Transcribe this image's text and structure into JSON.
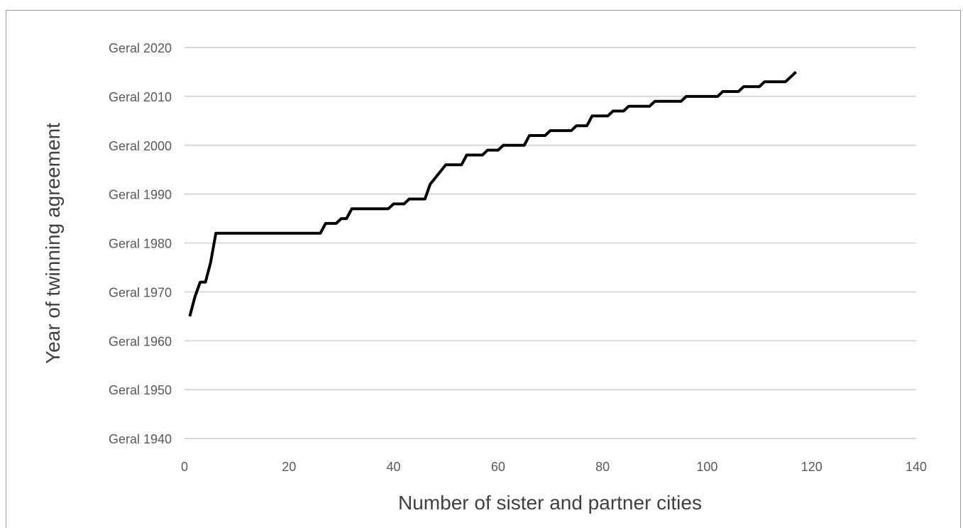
{
  "chart_data": {
    "type": "line",
    "xlabel": "Number of sister and partner cities",
    "ylabel": "Year of twinning agreement",
    "xlim": [
      0,
      140
    ],
    "ylim": [
      1940,
      2020
    ],
    "x_ticks": [
      "0",
      "20",
      "40",
      "60",
      "80",
      "100",
      "120",
      "140"
    ],
    "y_ticks": [
      "Geral 1940",
      "Geral 1950",
      "Geral 1960",
      "Geral 1970",
      "Geral 1980",
      "Geral 1990",
      "Geral 2000",
      "Geral 2010",
      "Geral 2020"
    ],
    "grid": "horizontal",
    "legend": "none",
    "line_color": "#000000",
    "series": [
      {
        "x": [
          1,
          2,
          3,
          4,
          5,
          6,
          7,
          10,
          15,
          20,
          26,
          27,
          29,
          30,
          31,
          32,
          34,
          38,
          39,
          40,
          42,
          43,
          46,
          47,
          50,
          51,
          53,
          54,
          57,
          58,
          60,
          61,
          65,
          66,
          69,
          70,
          74,
          75,
          77,
          78,
          81,
          82,
          84,
          85,
          89,
          90,
          95,
          96,
          102,
          103,
          106,
          107,
          110,
          111,
          115,
          117
        ],
        "y": [
          1965,
          1969,
          1972,
          1972,
          1976,
          1982,
          1982,
          1982,
          1982,
          1982,
          1982,
          1984,
          1984,
          1985,
          1985,
          1987,
          1987,
          1987,
          1987,
          1988,
          1988,
          1989,
          1989,
          1992,
          1996,
          1996,
          1996,
          1998,
          1998,
          1999,
          1999,
          2000,
          2000,
          2002,
          2002,
          2003,
          2003,
          2004,
          2004,
          2006,
          2006,
          2007,
          2007,
          2008,
          2008,
          2009,
          2009,
          2010,
          2010,
          2011,
          2011,
          2012,
          2012,
          2013,
          2013,
          2015
        ]
      }
    ]
  }
}
